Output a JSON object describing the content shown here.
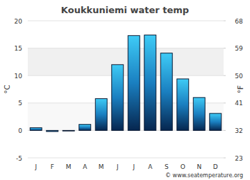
{
  "chart_data": {
    "type": "bar",
    "title": "Koukkuniemi water temp",
    "y_label": "°C",
    "y2_label": "°F",
    "categories": [
      "J",
      "F",
      "M",
      "A",
      "M",
      "J",
      "J",
      "A",
      "S",
      "O",
      "N",
      "D"
    ],
    "values": [
      0.5,
      -0.2,
      -0.1,
      1.1,
      5.8,
      12.0,
      17.3,
      17.4,
      14.1,
      9.4,
      6.0,
      3.1
    ],
    "ylim": [
      -5,
      20
    ],
    "yticks": [
      -5,
      0,
      5,
      10,
      15,
      20
    ],
    "y2lim": [
      23,
      68
    ],
    "y2ticks": [
      23,
      32,
      41,
      50,
      59,
      68
    ],
    "grid": true,
    "footer": "© www.seatemperature.org"
  }
}
